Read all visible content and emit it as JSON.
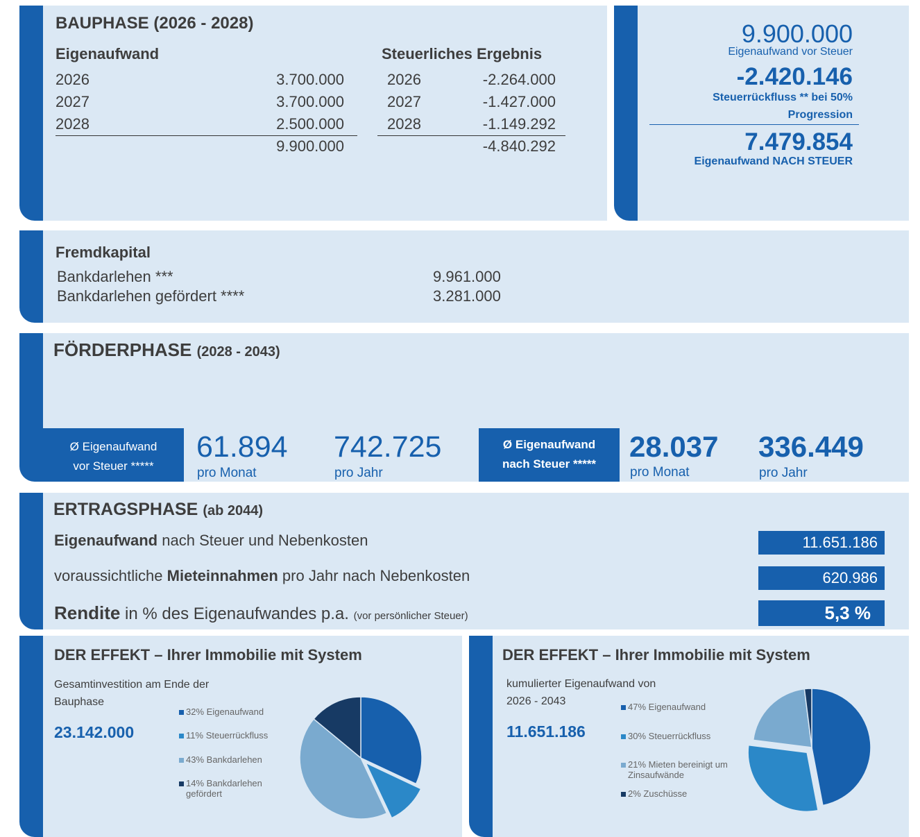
{
  "bau": {
    "title": "BAUPHASE (2026 - 2028)",
    "eigen": {
      "header": "Eigenaufwand",
      "rows": [
        [
          "2026",
          "3.700.000"
        ],
        [
          "2027",
          "3.700.000"
        ],
        [
          "2028",
          "2.500.000"
        ]
      ],
      "total": "9.900.000"
    },
    "steuer": {
      "header": "Steuerliches Ergebnis",
      "rows": [
        [
          "2026",
          "-2.264.000"
        ],
        [
          "2027",
          "-1.427.000"
        ],
        [
          "2028",
          "-1.149.292"
        ]
      ],
      "total": "-4.840.292"
    }
  },
  "summary": {
    "before": "9.900.000",
    "before_label": "Eigenaufwand vor Steuer",
    "refund": "-2.420.146",
    "refund_label_1": "Steuerrückfluss ** bei 50%",
    "refund_label_2": "Progression",
    "after": "7.479.854",
    "after_label": "Eigenaufwand NACH STEUER"
  },
  "fremd": {
    "title": "Fremdkapital",
    "rows": [
      [
        "Bankdarlehen ***",
        "9.961.000"
      ],
      [
        "Bankdarlehen gefördert ****",
        "3.281.000"
      ]
    ]
  },
  "foerder": {
    "title": "FÖRDERPHASE",
    "period": "(2028 - 2043)",
    "blocks": [
      {
        "label_1": "Ø Eigenaufwand",
        "label_2": "vor Steuer *****",
        "monthly": "61.894",
        "monthly_label": "pro Monat",
        "yearly": "742.725",
        "yearly_label": "pro Jahr"
      },
      {
        "label_1": "Ø Eigenaufwand",
        "label_2": "nach Steuer *****",
        "monthly": "28.037",
        "monthly_label": "pro Monat",
        "yearly": "336.449",
        "yearly_label": "pro Jahr"
      }
    ]
  },
  "ertrag": {
    "title": "ERTRAGSPHASE",
    "period": "(ab 2044)",
    "row1": {
      "bold": "Eigenaufwand",
      "rest": "nach Steuer und Nebenkosten",
      "value": "11.651.186"
    },
    "row2": {
      "pre": "voraussichtliche",
      "bold": "Mieteinnahmen",
      "rest": "pro Jahr nach Nebenkosten",
      "value": "620.986"
    },
    "row3": {
      "bold": "Rendite",
      "rest": "in % des Eigenaufwandes p.a.",
      "note": "(vor persönlicher Steuer)",
      "value": "5,3 %"
    }
  },
  "chart_data": [
    {
      "type": "pie",
      "title": "DER EFFEKT – Ihrer Immobilie mit System",
      "subtitle": "Gesamtinvestition am Ende der Bauphase",
      "total": "23.142.000",
      "categories": [
        "Eigenaufwand",
        "Steuerrückfluss",
        "Bankdarlehen",
        "Bankdarlehen gefördert"
      ],
      "values": [
        32,
        11,
        43,
        14
      ],
      "value_labels": [
        "32%",
        "11%",
        "43%",
        "14%"
      ],
      "colors": [
        "#1760ad",
        "#2b88c8",
        "#7aaacf",
        "#173a64"
      ],
      "explode": [
        false,
        true,
        false,
        false
      ]
    },
    {
      "type": "pie",
      "title": "DER EFFEKT – Ihrer Immobilie mit System",
      "subtitle": "kumulierter Eigenaufwand von 2026 - 2043",
      "total": "11.651.186",
      "categories": [
        "Eigenaufwand",
        "Steuerrückfluss",
        "Mieten bereinigt um Zinsaufwände",
        "Zuschüsse"
      ],
      "values": [
        47,
        30,
        21,
        2
      ],
      "value_labels": [
        "47%",
        "30%",
        "21%",
        "2%"
      ],
      "colors": [
        "#1760ad",
        "#2b88c8",
        "#7aaacf",
        "#173a64"
      ],
      "explode": [
        false,
        true,
        false,
        false
      ]
    }
  ]
}
